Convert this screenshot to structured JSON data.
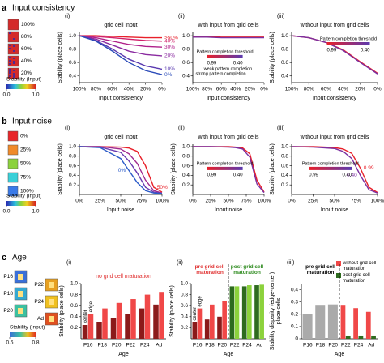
{
  "sections": [
    {
      "letter": "a",
      "title": "Input consistency",
      "icon_labels": [
        "100%",
        "80%",
        "60%",
        "40%",
        "20%"
      ],
      "icon_colors": [
        "#d42a2a",
        "#d42a2a",
        "#d42a2a",
        "#d42a2a",
        "#d42a2a"
      ],
      "colorbar": {
        "label": "Stability (Input)",
        "range": [
          0,
          1
        ],
        "ticks": [
          {
            "value": 0,
            "label": "0.0"
          },
          {
            "value": 1,
            "label": "1.0"
          }
        ]
      }
    },
    {
      "letter": "b",
      "title": "Input noise",
      "icon_labels": [
        "0%",
        "25%",
        "50%",
        "75%",
        "100%"
      ],
      "icon_colors": [
        "#e8262a",
        "#f08a2a",
        "#8cd23c",
        "#3ad0d8",
        "#3a7ae8"
      ],
      "colorbar": {
        "label": "Stability (Input)",
        "range": [
          0,
          1
        ],
        "ticks": [
          {
            "value": 0,
            "label": "0.0"
          },
          {
            "value": 1,
            "label": "1.0"
          }
        ]
      }
    },
    {
      "letter": "c",
      "title": "Age",
      "icon_labels": [
        "P16",
        "P18",
        "P20",
        "P22",
        "P24",
        "Ad"
      ],
      "icon_colors": [
        "#3a6fd8",
        "#35a8d0",
        "#3cc0a0",
        "#e8a020",
        "#f0c020",
        "#e05020"
      ],
      "colorbar": {
        "label": "Stability (Input)",
        "range": [
          0.5,
          0.8
        ],
        "ticks": [
          0.5,
          0.8
        ]
      }
    }
  ],
  "chart_data": [
    {
      "type": "line",
      "label": "(i)",
      "title": "grid cell input",
      "xlabel": "Input consistency",
      "ylabel": "Stability (place cells)",
      "name_position": "end",
      "x": [
        100,
        80,
        60,
        40,
        20,
        0
      ],
      "xlim": [
        100,
        0
      ],
      "xticks": [
        {
          "value": 100,
          "label": "100%"
        },
        {
          "value": 80,
          "label": "80%"
        },
        {
          "value": 60,
          "label": "60%"
        },
        {
          "value": 40,
          "label": "40%"
        },
        {
          "value": 20,
          "label": "20%"
        },
        {
          "value": 0,
          "label": "0%"
        }
      ],
      "ylim": [
        0.3,
        1.05
      ],
      "yticks": [
        0.4,
        0.6,
        0.8,
        {
          "value": 1,
          "label": "1.0"
        }
      ],
      "series": [
        {
          "name": ">50%",
          "color": "#e8202a",
          "values": [
            1,
            1,
            0.99,
            0.98,
            0.97,
            0.97
          ]
        },
        {
          "name": "40%",
          "color": "#d0206a",
          "values": [
            1,
            0.99,
            0.97,
            0.95,
            0.93,
            0.92
          ]
        },
        {
          "name": "30%",
          "color": "#b0208a",
          "values": [
            1,
            0.97,
            0.92,
            0.87,
            0.84,
            0.83
          ]
        },
        {
          "name": "20%",
          "color": "#8a2aa0",
          "values": [
            1,
            0.95,
            0.86,
            0.77,
            0.72,
            0.7
          ]
        },
        {
          "name": "10%",
          "color": "#5a3ab0",
          "values": [
            1,
            0.93,
            0.8,
            0.65,
            0.55,
            0.5
          ]
        },
        {
          "name": "0%",
          "color": "#2a4ab8",
          "values": [
            1,
            0.92,
            0.77,
            0.6,
            0.48,
            0.42
          ]
        }
      ]
    },
    {
      "type": "line",
      "label": "(ii)",
      "title": "with input from grid cells",
      "xlabel": "Input consistency",
      "x": [
        100,
        80,
        60,
        40,
        20,
        0
      ],
      "xlim": [
        100,
        0
      ],
      "xticks": [
        {
          "value": 100,
          "label": "100%"
        },
        {
          "value": 80,
          "label": "80%"
        },
        {
          "value": 60,
          "label": "60%"
        },
        {
          "value": 40,
          "label": "40%"
        },
        {
          "value": 20,
          "label": "20%"
        },
        {
          "value": 0,
          "label": "0%"
        }
      ],
      "ylim": [
        0.3,
        1.05
      ],
      "yticks": [
        0.4,
        0.6,
        0.8,
        {
          "value": 1,
          "label": "1.0"
        }
      ],
      "series": [
        {
          "color": "#e8202a",
          "values": [
            0.99,
            0.99,
            0.98,
            0.98,
            0.98,
            0.98
          ]
        },
        {
          "color": "#7b2fa0",
          "values": [
            0.98,
            0.98,
            0.97,
            0.97,
            0.97,
            0.97
          ]
        }
      ],
      "threshold": {
        "title": "Pattern completion threshold",
        "corner": "lower left",
        "ticks": [
          0.99,
          {
            "value": 0.4,
            "label": "0.40"
          }
        ],
        "notes": [
          "weak pattern completion",
          "strong pattern completion"
        ]
      }
    },
    {
      "type": "line",
      "label": "(iii)",
      "title": "without input from grid cells",
      "xlabel": "Input consistency",
      "ylabel": "Stability (place cells)",
      "x": [
        100,
        80,
        60,
        40,
        20,
        0
      ],
      "xlim": [
        100,
        0
      ],
      "xticks": [
        {
          "value": 100,
          "label": "100%"
        },
        {
          "value": 80,
          "label": "80%"
        },
        {
          "value": 60,
          "label": "60%"
        },
        {
          "value": 40,
          "label": "40%"
        },
        {
          "value": 20,
          "label": "20%"
        },
        {
          "value": 0,
          "label": "0%"
        }
      ],
      "ylim": [
        0.3,
        1.05
      ],
      "yticks": [
        0.4,
        0.6,
        0.8,
        {
          "value": 1,
          "label": "1.0"
        }
      ],
      "series": [
        {
          "color": "#e8202a",
          "values": [
            1,
            0.97,
            0.9,
            0.79,
            0.61,
            0.44
          ]
        },
        {
          "color": "#7b2fa0",
          "values": [
            1,
            0.97,
            0.9,
            0.78,
            0.6,
            0.43
          ]
        }
      ],
      "threshold": {
        "title": "Pattern completion threshold",
        "corner": "upper right",
        "ticks": [
          0.99,
          {
            "value": 0.4,
            "label": "0.40"
          }
        ]
      }
    },
    {
      "type": "line",
      "label": "(i)",
      "title": "grid cell input",
      "xlabel": "Input noise",
      "ylabel": "Stability (place cells)",
      "name_position": "middle",
      "x": [
        0,
        25,
        50,
        60,
        70,
        80,
        90,
        100
      ],
      "xlim": [
        0,
        100
      ],
      "xticks": [
        {
          "value": 0,
          "label": "0%"
        },
        {
          "value": 25,
          "label": "25%"
        },
        {
          "value": 50,
          "label": "50%"
        },
        {
          "value": 75,
          "label": "75%"
        },
        {
          "value": 100,
          "label": "100%"
        }
      ],
      "ylim": [
        0,
        1.05
      ],
      "yticks": [
        0.2,
        0.4,
        0.6,
        0.8,
        {
          "value": 1,
          "label": "1.0"
        }
      ],
      "series": [
        {
          "name": "50%",
          "color": "#e8202a",
          "values": [
            1,
            1,
            0.99,
            0.97,
            0.9,
            0.6,
            0.15,
            0.05
          ]
        },
        {
          "color": "#a02a90",
          "values": [
            1,
            1,
            0.95,
            0.85,
            0.65,
            0.3,
            0.08,
            0.03
          ]
        },
        {
          "color": "#6a3ab0",
          "values": [
            1,
            0.99,
            0.88,
            0.7,
            0.45,
            0.15,
            0.05,
            0.02
          ]
        },
        {
          "name": "0%",
          "color": "#2a5ac8",
          "values": [
            1,
            0.98,
            0.75,
            0.5,
            0.25,
            0.08,
            0.03,
            0.02
          ]
        }
      ]
    },
    {
      "type": "line",
      "label": "(ii)",
      "title": "with input from grid cells",
      "xlabel": "Input noise",
      "ylabel": "Stability (place cells)",
      "x": [
        0,
        25,
        50,
        60,
        70,
        80,
        90,
        100
      ],
      "xlim": [
        0,
        100
      ],
      "xticks": [
        {
          "value": 0,
          "label": "0%"
        },
        {
          "value": 25,
          "label": "25%"
        },
        {
          "value": 50,
          "label": "50%"
        },
        {
          "value": 75,
          "label": "75%"
        },
        {
          "value": 100,
          "label": "100%"
        }
      ],
      "ylim": [
        0,
        1.05
      ],
      "yticks": [
        0.2,
        0.4,
        0.6,
        0.8,
        {
          "value": 1,
          "label": "1.0"
        }
      ],
      "series": [
        {
          "color": "#e8202a",
          "values": [
            1,
            1,
            1,
            0.99,
            0.97,
            0.85,
            0.3,
            0.05
          ]
        },
        {
          "color": "#7b2fa0",
          "values": [
            1,
            1,
            0.99,
            0.98,
            0.95,
            0.78,
            0.22,
            0.04
          ]
        }
      ],
      "threshold": {
        "title": "Pattern completion threshold",
        "corner": "lower left",
        "ticks": [
          0.99,
          {
            "value": 0.4,
            "label": "0.40"
          }
        ]
      }
    },
    {
      "type": "line",
      "label": "(iii)",
      "title": "without input from grid cells",
      "xlabel": "Input noise",
      "ylabel": "Stability (place cells)",
      "name_position": "middle",
      "x": [
        0,
        25,
        50,
        60,
        70,
        80,
        90,
        100
      ],
      "xlim": [
        0,
        100
      ],
      "xticks": [
        {
          "value": 0,
          "label": "0%"
        },
        {
          "value": 25,
          "label": "25%"
        },
        {
          "value": 50,
          "label": "50%"
        },
        {
          "value": 75,
          "label": "75%"
        },
        {
          "value": 100,
          "label": "100%"
        }
      ],
      "ylim": [
        0,
        1.05
      ],
      "yticks": [
        0.2,
        0.4,
        0.6,
        0.8,
        {
          "value": 1,
          "label": "1.0"
        }
      ],
      "series": [
        {
          "name": "0.99",
          "color": "#e8202a",
          "values": [
            1,
            1,
            0.98,
            0.95,
            0.86,
            0.55,
            0.15,
            0.04
          ]
        },
        {
          "name": "0.40",
          "color": "#7b2fa0",
          "values": [
            1,
            0.99,
            0.96,
            0.9,
            0.75,
            0.4,
            0.1,
            0.03
          ]
        }
      ],
      "threshold": {
        "title": "Pattern completion threshold",
        "corner": "lower left",
        "ticks": [
          0.99,
          {
            "value": 0.4,
            "label": "0.40"
          }
        ]
      }
    },
    {
      "type": "bar",
      "label": "(i)",
      "title": "no grid cell maturation",
      "title_color": "#e03030",
      "xlabel": "Age",
      "ylabel": "Stability (place cells)",
      "categories": [
        "P16",
        "P18",
        "P20",
        "P22",
        "P24",
        "Ad"
      ],
      "ylim": [
        0,
        1
      ],
      "yticks": [
        0.2,
        0.4,
        0.6,
        0.8,
        {
          "value": 1,
          "label": "1.0"
        }
      ],
      "series": [
        {
          "name": "center",
          "color": "#8b1a1a",
          "values": [
            0.25,
            0.3,
            0.37,
            0.45,
            0.55,
            0.62
          ]
        },
        {
          "name": "edge",
          "color": "#f04848",
          "values": [
            0.45,
            0.55,
            0.65,
            0.72,
            0.8,
            0.85
          ]
        }
      ]
    },
    {
      "type": "bar",
      "label": "(ii)",
      "xlabel": "Age",
      "ylabel": "Stability (place cells)",
      "annotations": [
        "pre grid cell maturation",
        "post grid cell maturation"
      ],
      "annotation_colors": [
        "#e03030",
        "#2e8b1f"
      ],
      "categories": [
        "P16",
        "P18",
        "P20",
        "P22",
        "P24",
        "Ad"
      ],
      "ylim": [
        0,
        1
      ],
      "yticks": [
        0.2,
        0.4,
        0.6,
        0.8,
        {
          "value": 1,
          "label": "1.0"
        }
      ],
      "series": [
        {
          "name": "center",
          "color": "#8b1a1a",
          "colors": [
            "#8b1a1a",
            "#8b1a1a",
            "#8b1a1a",
            "#2e6b1f",
            "#2e6b1f",
            "#2e6b1f"
          ],
          "values": [
            0.3,
            0.35,
            0.4,
            0.95,
            0.95,
            0.97
          ]
        },
        {
          "name": "edge",
          "color": "#f04848",
          "colors": [
            "#f04848",
            "#f04848",
            "#f04848",
            "#8cd23c",
            "#8cd23c",
            "#8cd23c"
          ],
          "values": [
            0.55,
            0.62,
            0.68,
            0.95,
            0.97,
            0.98
          ]
        }
      ]
    },
    {
      "type": "bar",
      "label": "(iii)",
      "xlabel": "Age",
      "ylabel": [
        "Stability disparity (edge-center)",
        "place cells"
      ],
      "annotations": [
        "pre grid cell maturation"
      ],
      "annotation_colors": [
        "#000000"
      ],
      "legend": "upper right",
      "categories": [
        "P16",
        "P18",
        "P20",
        "P22",
        "P24",
        "Ad"
      ],
      "ylim": [
        0,
        0.45
      ],
      "yticks": [
        0,
        0.1,
        0.2,
        0.3,
        0.4
      ],
      "series": [
        {
          "color": "#aaaaaa",
          "values": [
            0.2,
            0.27,
            0.28,
            null,
            null,
            null
          ]
        },
        {
          "name": "without grid cell maturation",
          "color": "#f04848",
          "values": [
            null,
            null,
            null,
            0.27,
            0.25,
            0.22
          ]
        },
        {
          "name": "post grid cell maturation",
          "color": "#2e6b1f",
          "values": [
            null,
            null,
            null,
            0.02,
            0.02,
            0.02
          ]
        }
      ]
    }
  ]
}
